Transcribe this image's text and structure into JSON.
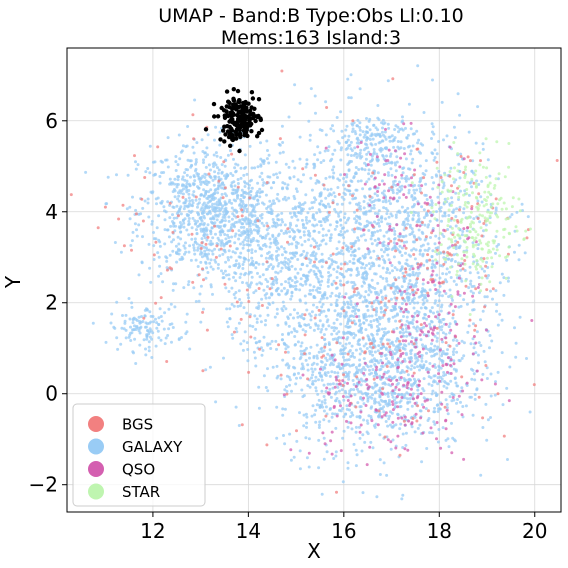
{
  "chart_data": {
    "type": "scatter",
    "title_line1": "UMAP  -  Band:B Type:Obs Ll:0.10",
    "title_line2": "Mems:163 Island:3",
    "xlabel": "X",
    "ylabel": "Y",
    "xlim": [
      10.2,
      20.55
    ],
    "ylim": [
      -2.6,
      7.6
    ],
    "xticks": [
      12,
      14,
      16,
      18,
      20
    ],
    "yticks": [
      -2,
      0,
      2,
      4,
      6
    ],
    "xtick_labels": [
      "12",
      "14",
      "16",
      "18",
      "20"
    ],
    "ytick_labels": [
      "−2",
      "0",
      "2",
      "4",
      "6"
    ],
    "grid": true,
    "legend_position": "lower-left",
    "legend": [
      {
        "label": "BGS",
        "color": "#f28080"
      },
      {
        "label": "GALAXY",
        "color": "#99ccf5"
      },
      {
        "label": "QSO",
        "color": "#d45fb0"
      },
      {
        "label": "STAR",
        "color": "#bff5b0"
      }
    ],
    "series": [
      {
        "name": "GALAXY",
        "color": "#99ccf5",
        "clusters": [
          {
            "center": [
              13.2,
              4.0
            ],
            "spread": [
              0.75,
              0.75
            ],
            "count": 900
          },
          {
            "center": [
              11.8,
              1.45
            ],
            "spread": [
              0.35,
              0.25
            ],
            "count": 120
          },
          {
            "center": [
              16.6,
              4.3
            ],
            "spread": [
              1.1,
              1.0
            ],
            "count": 650
          },
          {
            "center": [
              16.6,
              0.5
            ],
            "spread": [
              1.0,
              0.9
            ],
            "count": 1100
          },
          {
            "center": [
              16.0,
              2.5
            ],
            "spread": [
              1.2,
              1.0
            ],
            "count": 700
          },
          {
            "center": [
              18.0,
              2.5
            ],
            "spread": [
              0.7,
              1.2
            ],
            "count": 450
          },
          {
            "center": [
              16.6,
              5.6
            ],
            "spread": [
              0.4,
              0.3
            ],
            "count": 120
          },
          {
            "center": [
              14.5,
              3.0
            ],
            "spread": [
              0.8,
              1.0
            ],
            "count": 350
          }
        ]
      },
      {
        "name": "BGS",
        "color": "#f28080",
        "clusters": [
          {
            "center": [
              16.5,
              2.0
            ],
            "spread": [
              1.6,
              1.8
            ],
            "count": 160
          },
          {
            "center": [
              13.0,
              3.5
            ],
            "spread": [
              0.9,
              1.0
            ],
            "count": 60
          },
          {
            "center": [
              18.2,
              3.5
            ],
            "spread": [
              0.6,
              1.0
            ],
            "count": 70
          }
        ]
      },
      {
        "name": "QSO",
        "color": "#d45fb0",
        "clusters": [
          {
            "center": [
              17.8,
              1.2
            ],
            "spread": [
              0.6,
              1.2
            ],
            "count": 160
          },
          {
            "center": [
              16.6,
              -0.2
            ],
            "spread": [
              0.8,
              0.6
            ],
            "count": 110
          },
          {
            "center": [
              17.2,
              4.5
            ],
            "spread": [
              0.7,
              0.6
            ],
            "count": 60
          }
        ]
      },
      {
        "name": "STAR",
        "color": "#bff5b0",
        "clusters": [
          {
            "center": [
              18.8,
              3.8
            ],
            "spread": [
              0.45,
              0.7
            ],
            "count": 220
          }
        ]
      },
      {
        "name": "Mems",
        "color": "#000000",
        "clusters": [
          {
            "center": [
              13.8,
              6.05
            ],
            "spread": [
              0.22,
              0.25
            ],
            "count": 163
          }
        ]
      }
    ]
  }
}
